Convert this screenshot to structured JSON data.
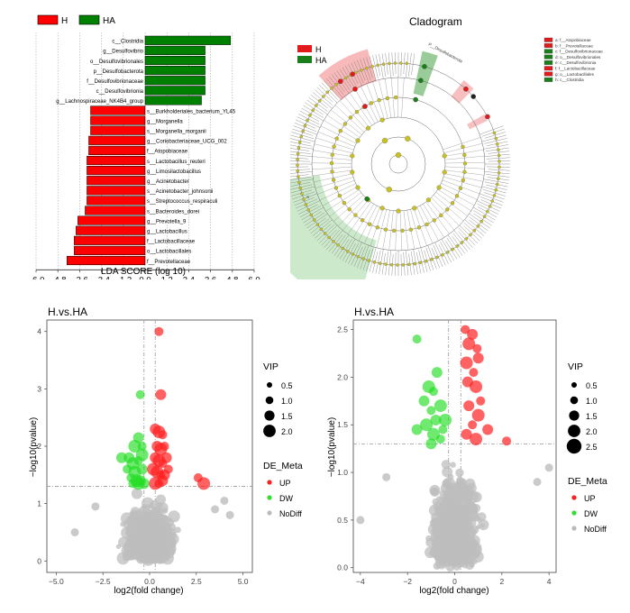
{
  "chart_data": [
    {
      "type": "bar",
      "name": "lda",
      "legend": [
        {
          "label": "H",
          "color": "#ff0000"
        },
        {
          "label": "HA",
          "color": "#008000"
        }
      ],
      "xlabel": "LDA SCORE (log 10)",
      "xlim": [
        -6.0,
        6.0
      ],
      "xticks": [
        "−6.0",
        "−4.8",
        "−3.6",
        "−2.4",
        "−1.2",
        "0.0",
        "1.2",
        "2.4",
        "3.6",
        "4.8",
        "6.0"
      ],
      "bars": [
        {
          "label": "c__Clostridia",
          "value": 4.7,
          "group": "HA"
        },
        {
          "label": "g__Desulfovibrio",
          "value": 3.3,
          "group": "HA"
        },
        {
          "label": "o__Desulfovibrionales",
          "value": 3.3,
          "group": "HA"
        },
        {
          "label": "p__Desulfobacterota",
          "value": 3.3,
          "group": "HA"
        },
        {
          "label": "f__Desulfovibrionaceae",
          "value": 3.3,
          "group": "HA"
        },
        {
          "label": "c__Desulfovibrionia",
          "value": 3.3,
          "group": "HA"
        },
        {
          "label": "g__Lachnospiraceae_NK4B4_group",
          "value": 3.1,
          "group": "HA"
        },
        {
          "label": "s__Burkholderiales_bacterium_YL45",
          "value": -3.0,
          "group": "H"
        },
        {
          "label": "g__Morganella",
          "value": -3.0,
          "group": "H"
        },
        {
          "label": "s__Morganella_morganii",
          "value": -3.0,
          "group": "H"
        },
        {
          "label": "g__Coriobacteriaceae_UCG_002",
          "value": -3.1,
          "group": "H"
        },
        {
          "label": "f__Atopobiaceae",
          "value": -3.1,
          "group": "H"
        },
        {
          "label": "s__Lactobacillus_reuteri",
          "value": -3.2,
          "group": "H"
        },
        {
          "label": "g__Limosilactobacillus",
          "value": -3.2,
          "group": "H"
        },
        {
          "label": "g__Acinetobacter",
          "value": -3.2,
          "group": "H"
        },
        {
          "label": "s__Acinetobacter_johnsonii",
          "value": -3.2,
          "group": "H"
        },
        {
          "label": "s__Streptococcus_respiraculi",
          "value": -3.2,
          "group": "H"
        },
        {
          "label": "s__Bacteroides_dorei",
          "value": -3.3,
          "group": "H"
        },
        {
          "label": "g__Prevotella_9",
          "value": -3.7,
          "group": "H"
        },
        {
          "label": "g__Lactobacillus",
          "value": -3.8,
          "group": "H"
        },
        {
          "label": "f__Lactobacillaceae",
          "value": -3.9,
          "group": "H"
        },
        {
          "label": "o__Lactobacillales",
          "value": -3.9,
          "group": "H"
        },
        {
          "label": "f__Prevotellaceae",
          "value": -4.3,
          "group": "H"
        }
      ]
    },
    {
      "type": "cladogram",
      "name": "cladogram",
      "title": "Cladogram",
      "legend": [
        {
          "label": "H",
          "color": "#e31a1c"
        },
        {
          "label": "HA",
          "color": "#1a7f1a"
        }
      ],
      "key": [
        {
          "label": "a: f__Atopobiaceae",
          "group": "H"
        },
        {
          "label": "b: f__Prevotellaceae",
          "group": "H"
        },
        {
          "label": "c: f__Desulfovibrionaceae",
          "group": "HA"
        },
        {
          "label": "d: o__Desulfovibrionales",
          "group": "HA"
        },
        {
          "label": "e: c__Desulfovibrionia",
          "group": "HA"
        },
        {
          "label": "f: f__Lactobacillaceae",
          "group": "H"
        },
        {
          "label": "g: o__Lactobacillales",
          "group": "H"
        },
        {
          "label": "h: c__Clostridia",
          "group": "HA"
        }
      ],
      "clade_label": "P__Desulfobacterota",
      "sector_label": "a"
    },
    {
      "type": "scatter",
      "name": "volcano1",
      "title": "H.vs.HA",
      "xlabel": "log2(fold change)",
      "ylabel": "−log10(pvalue)",
      "xlim": [
        -5.5,
        5.5
      ],
      "ylim": [
        -0.2,
        4.2
      ],
      "xticks": [
        "−5.0",
        "−2.5",
        "0.0",
        "2.5",
        "5.0"
      ],
      "yticks": [
        "0",
        "1",
        "2",
        "3",
        "4"
      ],
      "hline": 1.3,
      "vlines": [
        -0.3,
        0.3
      ],
      "legend_vip_title": "VIP",
      "vip_legend": [
        "0.5",
        "1.0",
        "1.5",
        "2.0"
      ],
      "legend_de_title": "DE_Meta",
      "de_legend": [
        {
          "label": "UP",
          "color": "#ff2020"
        },
        {
          "label": "DW",
          "color": "#33dd33"
        },
        {
          "label": "NoDiff",
          "color": "#bbbbbb"
        }
      ],
      "up": [
        [
          0.5,
          4.0
        ],
        [
          0.6,
          2.9
        ],
        [
          2.9,
          1.35
        ],
        [
          2.6,
          1.45
        ],
        [
          0.3,
          2.3
        ],
        [
          0.5,
          2.25
        ],
        [
          0.7,
          2.2
        ],
        [
          0.4,
          2.0
        ],
        [
          0.6,
          1.95
        ],
        [
          0.8,
          2.0
        ],
        [
          0.3,
          1.8
        ],
        [
          0.5,
          1.75
        ],
        [
          0.7,
          1.7
        ],
        [
          0.9,
          1.8
        ],
        [
          0.4,
          1.55
        ],
        [
          0.6,
          1.5
        ],
        [
          0.8,
          1.5
        ],
        [
          0.3,
          1.35
        ],
        [
          0.5,
          1.35
        ],
        [
          0.7,
          1.4
        ],
        [
          0.2,
          1.6
        ],
        [
          1.0,
          1.6
        ]
      ],
      "down": [
        [
          -0.5,
          2.9
        ],
        [
          -0.6,
          2.15
        ],
        [
          -0.8,
          2.0
        ],
        [
          -0.4,
          2.0
        ],
        [
          -1.1,
          1.8
        ],
        [
          -0.9,
          1.7
        ],
        [
          -0.6,
          1.75
        ],
        [
          -0.4,
          1.6
        ],
        [
          -0.8,
          1.55
        ],
        [
          -1.2,
          1.6
        ],
        [
          -0.5,
          1.4
        ],
        [
          -0.7,
          1.4
        ],
        [
          -1.0,
          1.45
        ],
        [
          -0.3,
          1.35
        ],
        [
          -0.6,
          1.35
        ],
        [
          -0.9,
          1.35
        ],
        [
          -1.5,
          1.8
        ],
        [
          -0.4,
          1.85
        ]
      ]
    },
    {
      "type": "scatter",
      "name": "volcano2",
      "title": "H.vs.HA",
      "xlabel": "log2(fold change)",
      "ylabel": "−log10(pvalue)",
      "xlim": [
        -4.3,
        4.3
      ],
      "ylim": [
        -0.05,
        2.6
      ],
      "xticks": [
        "−4",
        "−2",
        "0",
        "2",
        "4"
      ],
      "yticks": [
        "0.0",
        "0.5",
        "1.0",
        "1.5",
        "2.0",
        "2.5"
      ],
      "hline": 1.3,
      "vlines": [
        -0.26,
        0.26
      ],
      "legend_vip_title": "VIP",
      "vip_legend": [
        "0.5",
        "1.0",
        "1.5",
        "2.0",
        "2.5"
      ],
      "legend_de_title": "DE_Meta",
      "de_legend": [
        {
          "label": "UP",
          "color": "#ff2020"
        },
        {
          "label": "DW",
          "color": "#33dd33"
        },
        {
          "label": "NoDiff",
          "color": "#bbbbbb"
        }
      ],
      "up": [
        [
          0.45,
          2.5
        ],
        [
          0.75,
          2.45
        ],
        [
          0.6,
          2.35
        ],
        [
          0.95,
          2.3
        ],
        [
          1.0,
          2.2
        ],
        [
          0.5,
          2.15
        ],
        [
          0.8,
          2.05
        ],
        [
          0.55,
          1.95
        ],
        [
          0.9,
          1.9
        ],
        [
          1.1,
          1.75
        ],
        [
          0.6,
          1.7
        ],
        [
          1.0,
          1.6
        ],
        [
          0.75,
          1.5
        ],
        [
          1.4,
          1.45
        ],
        [
          0.9,
          1.35
        ],
        [
          2.2,
          1.33
        ],
        [
          0.5,
          1.4
        ]
      ],
      "down": [
        [
          -1.6,
          2.4
        ],
        [
          -0.75,
          2.05
        ],
        [
          -1.1,
          1.9
        ],
        [
          -0.9,
          1.85
        ],
        [
          -1.3,
          1.75
        ],
        [
          -0.6,
          1.7
        ],
        [
          -1.0,
          1.65
        ],
        [
          -0.8,
          1.55
        ],
        [
          -1.2,
          1.5
        ],
        [
          -0.5,
          1.45
        ],
        [
          -1.6,
          1.45
        ],
        [
          -0.9,
          1.4
        ],
        [
          -0.6,
          1.35
        ],
        [
          -1.0,
          1.3
        ],
        [
          -0.4,
          1.55
        ]
      ]
    }
  ]
}
